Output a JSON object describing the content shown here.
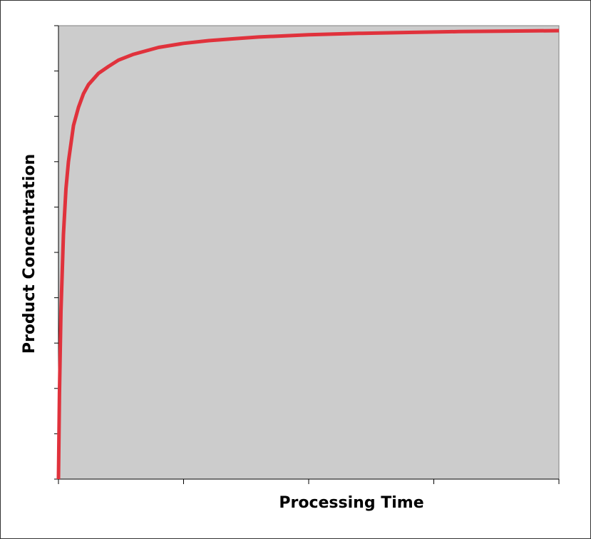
{
  "chart_data": {
    "type": "line",
    "title": "",
    "xlabel": "Processing Time",
    "ylabel": "Product Concentration",
    "xlim": [
      0,
      1
    ],
    "ylim": [
      0,
      1
    ],
    "x_ticks": 5,
    "y_ticks": 11,
    "grid": false,
    "legend": "none",
    "plot_background": "#cccccc",
    "line_color": "#e0323c",
    "series": [
      {
        "x": [
          0,
          0.002,
          0.005,
          0.01,
          0.015,
          0.02,
          0.03,
          0.04,
          0.05,
          0.06,
          0.08,
          0.1,
          0.12,
          0.15,
          0.2,
          0.25,
          0.3,
          0.35,
          0.4,
          0.5,
          0.6,
          0.7,
          0.8,
          0.9,
          1.0
        ],
        "y": [
          0.0,
          0.19,
          0.37,
          0.54,
          0.64,
          0.7,
          0.78,
          0.82,
          0.85,
          0.87,
          0.895,
          0.91,
          0.924,
          0.937,
          0.952,
          0.961,
          0.967,
          0.971,
          0.975,
          0.98,
          0.983,
          0.985,
          0.987,
          0.988,
          0.989
        ]
      }
    ]
  }
}
